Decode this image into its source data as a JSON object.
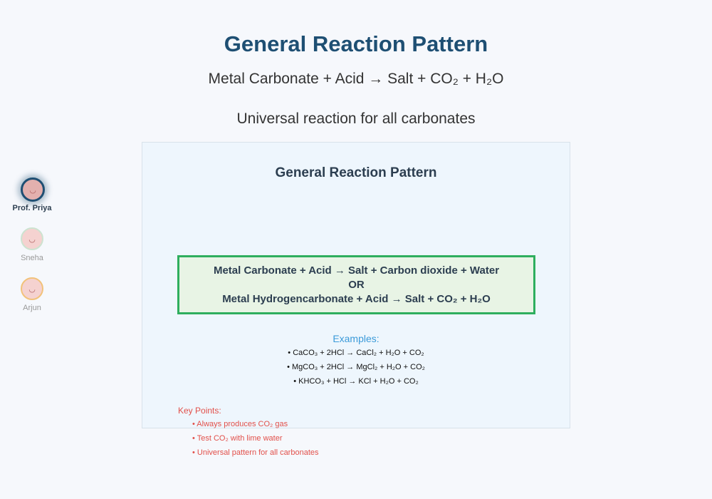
{
  "header": {
    "title": "General Reaction Pattern",
    "equation": "Metal Carbonate + Acid → Salt + CO₂ + H₂O",
    "subtitle": "Universal reaction for all carbonates"
  },
  "participants": [
    {
      "name": "Prof. Priya"
    },
    {
      "name": "Sneha"
    },
    {
      "name": "Arjun"
    }
  ],
  "board": {
    "title": "General Reaction Pattern",
    "equations": [
      "Metal Carbonate + Acid → Salt + Carbon dioxide + Water",
      "OR",
      "Metal Hydrogencarbonate + Acid → Salt + CO₂ + H₂O"
    ],
    "examples_label": "Examples:",
    "examples": [
      "• CaCO₃ + 2HCl → CaCl₂ + H₂O + CO₂",
      "• MgCO₃ + 2HCl → MgCl₂ + H₂O + CO₂",
      "• KHCO₃ + HCl → KCl + H₂O + CO₂"
    ],
    "key_points_label": "Key Points:",
    "key_points": [
      "• Always produces CO₂ gas",
      "• Test CO₂ with lime water",
      "• Universal pattern for all carbonates"
    ]
  }
}
